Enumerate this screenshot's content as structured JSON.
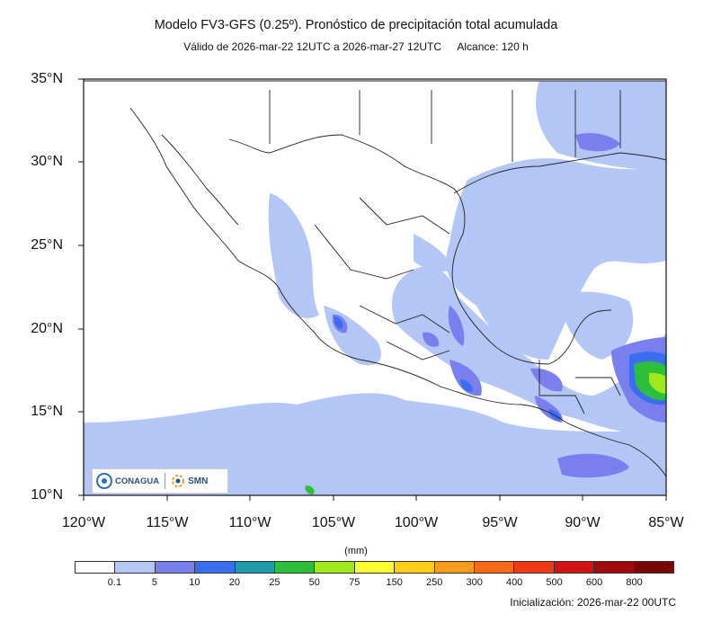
{
  "header": {
    "title": "Modelo FV3-GFS (0.25º). Pronóstico de precipitación total acumulada",
    "valid": "Válido de 2026-mar-22 12UTC a 2026-mar-27 12UTC",
    "range": "Alcance: 120 h"
  },
  "axes": {
    "lat_labels": [
      "35°N",
      "30°N",
      "25°N",
      "20°N",
      "15°N",
      "10°N"
    ],
    "lon_labels": [
      "120°W",
      "115°W",
      "110°W",
      "105°W",
      "100°W",
      "95°W",
      "90°W",
      "85°W"
    ]
  },
  "legend": {
    "units": "(mm)",
    "colors": [
      "#ffffff",
      "#b3c6f5",
      "#7a7ff0",
      "#3a6df0",
      "#1f9aa8",
      "#2dbf3a",
      "#9fe81c",
      "#ffff33",
      "#ffcc1a",
      "#ff9a1a",
      "#ff6a1a",
      "#f03a14",
      "#d41414",
      "#a00a0a",
      "#7a0505"
    ],
    "labels": [
      "0.1",
      "5",
      "10",
      "20",
      "25",
      "50",
      "75",
      "150",
      "250",
      "300",
      "400",
      "500",
      "600",
      "800"
    ]
  },
  "logos": {
    "conagua": "CONAGUA",
    "smn": "SMN"
  },
  "footer": {
    "init": "Inicialización: 2026-mar-22 00UTC"
  }
}
